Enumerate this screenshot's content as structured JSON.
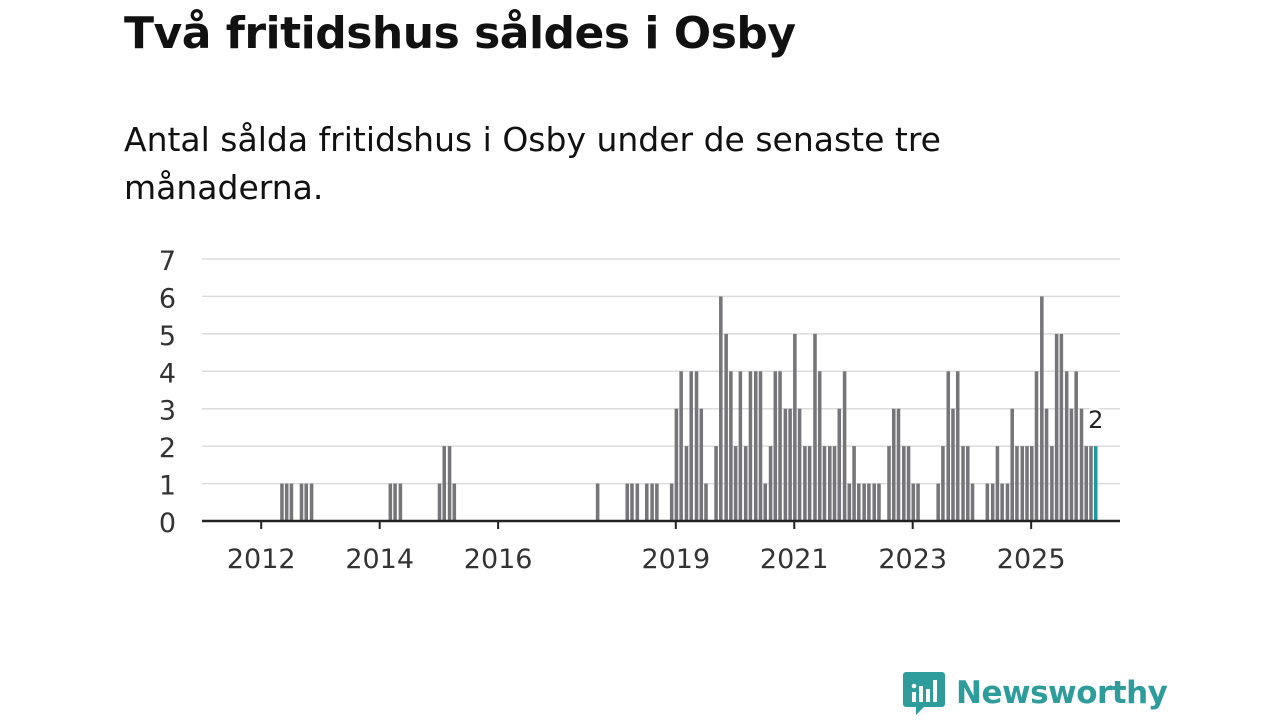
{
  "header": {
    "title": "Två fritidshus såldes i Osby",
    "subtitle": "Antal sålda fritidshus i Osby under de senaste tre månaderna."
  },
  "brand": {
    "name": "Newsworthy",
    "color": "#2f9c9c",
    "icon": "newsworthy-logo-icon"
  },
  "colors": {
    "bar": "#76767a",
    "highlight": "#1b9c9a",
    "grid": "#dcdcdc",
    "axis": "#222222"
  },
  "chart_data": {
    "type": "bar",
    "title": "Två fritidshus såldes i Osby",
    "xlabel": "",
    "ylabel": "",
    "ylim": [
      0,
      7
    ],
    "yticks": [
      0,
      1,
      2,
      3,
      4,
      5,
      6,
      7
    ],
    "xlim": [
      2011.0,
      2026.5
    ],
    "xticks": [
      2012,
      2014,
      2016,
      2019,
      2021,
      2023,
      2025
    ],
    "bar_width_years": 0.06,
    "highlight_label": "2",
    "x": [
      2012.35,
      2012.43,
      2012.51,
      2012.68,
      2012.76,
      2012.85,
      2014.18,
      2014.26,
      2014.35,
      2015.01,
      2015.09,
      2015.18,
      2015.26,
      2017.68,
      2018.18,
      2018.26,
      2018.35,
      2018.51,
      2018.6,
      2018.68,
      2018.93,
      2019.01,
      2019.09,
      2019.18,
      2019.26,
      2019.35,
      2019.43,
      2019.51,
      2019.68,
      2019.76,
      2019.85,
      2019.93,
      2020.01,
      2020.09,
      2020.18,
      2020.26,
      2020.35,
      2020.43,
      2020.51,
      2020.6,
      2020.68,
      2020.76,
      2020.85,
      2020.93,
      2021.01,
      2021.09,
      2021.18,
      2021.26,
      2021.35,
      2021.43,
      2021.51,
      2021.6,
      2021.68,
      2021.76,
      2021.85,
      2021.93,
      2022.01,
      2022.09,
      2022.18,
      2022.26,
      2022.35,
      2022.43,
      2022.6,
      2022.68,
      2022.76,
      2022.85,
      2022.93,
      2023.01,
      2023.09,
      2023.43,
      2023.51,
      2023.6,
      2023.68,
      2023.76,
      2023.85,
      2023.93,
      2024.01,
      2024.26,
      2024.35,
      2024.43,
      2024.51,
      2024.6,
      2024.68,
      2024.76,
      2024.85,
      2024.93,
      2025.01,
      2025.09,
      2025.18,
      2025.26,
      2025.35,
      2025.43,
      2025.51,
      2025.6,
      2025.68,
      2025.76,
      2025.85,
      2025.93,
      2026.01,
      2026.09
    ],
    "values": [
      1,
      1,
      1,
      1,
      1,
      1,
      1,
      1,
      1,
      1,
      2,
      2,
      1,
      1,
      1,
      1,
      1,
      1,
      1,
      1,
      1,
      3,
      4,
      2,
      4,
      4,
      3,
      1,
      2,
      6,
      5,
      4,
      2,
      4,
      2,
      4,
      4,
      4,
      1,
      2,
      4,
      4,
      3,
      3,
      5,
      3,
      2,
      2,
      5,
      4,
      2,
      2,
      2,
      3,
      4,
      1,
      2,
      1,
      1,
      1,
      1,
      1,
      2,
      3,
      3,
      2,
      2,
      1,
      1,
      1,
      2,
      4,
      3,
      4,
      2,
      2,
      1,
      1,
      1,
      2,
      1,
      1,
      3,
      2,
      2,
      2,
      2,
      4,
      6,
      3,
      2,
      5,
      5,
      4,
      3,
      4,
      3,
      2,
      2,
      2
    ]
  }
}
